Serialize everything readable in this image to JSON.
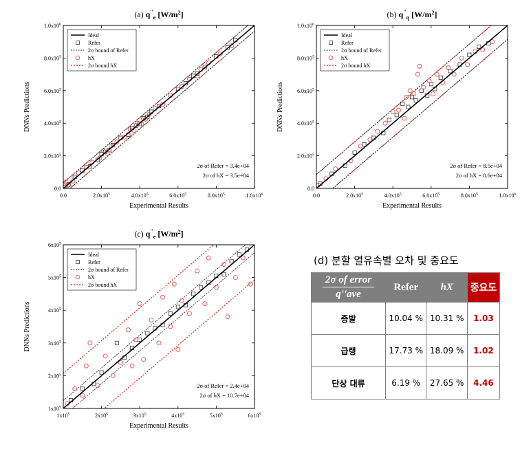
{
  "chart_data": [
    {
      "type": "scatter",
      "panel_label": "(a)",
      "title": "(a) q\"e [W/m2]",
      "title_parts": {
        "panel": "(a)",
        "symbol": "q",
        "sup": "''",
        "sub": "e",
        "unit": "[W/m",
        "unit_sup": "2",
        "unit_end": "]"
      },
      "xlabel": "Experimental Results",
      "ylabel": "DNNs Predictions",
      "xlim": [
        0,
        1000000
      ],
      "ylim": [
        0,
        1000000
      ],
      "x_ticks": [
        {
          "v": 0,
          "label": "0.0",
          "exp": ""
        },
        {
          "v": 200000,
          "label": "2.0x10",
          "exp": "5"
        },
        {
          "v": 400000,
          "label": "4.0x10",
          "exp": "5"
        },
        {
          "v": 600000,
          "label": "6.0x10",
          "exp": "5"
        },
        {
          "v": 800000,
          "label": "8.0x10",
          "exp": "5"
        },
        {
          "v": 1000000,
          "label": "1.0x10",
          "exp": "6"
        }
      ],
      "y_ticks": [
        {
          "v": 0,
          "label": "0.0",
          "exp": ""
        },
        {
          "v": 200000,
          "label": "2.0x10",
          "exp": "5"
        },
        {
          "v": 400000,
          "label": "4.0x10",
          "exp": "5"
        },
        {
          "v": 600000,
          "label": "6.0x10",
          "exp": "5"
        },
        {
          "v": 800000,
          "label": "8.0x10",
          "exp": "5"
        },
        {
          "v": 1000000,
          "label": "1.0x10",
          "exp": "6"
        }
      ],
      "legend": [
        "Ideal",
        "Refer",
        "2σ bound of Refer",
        "hX",
        "2σ bound hX"
      ],
      "legend_position": "top-left",
      "annotations": [
        "2σ of Refer = 3.4e+04",
        "2σ of hX = 3.5e+04"
      ],
      "bound_refer": 34000,
      "bound_hx": 35000,
      "series": [
        {
          "name": "Refer",
          "points": [
            [
              10000,
              15000
            ],
            [
              30000,
              25000
            ],
            [
              60000,
              70000
            ],
            [
              100000,
              110000
            ],
            [
              140000,
              135000
            ],
            [
              180000,
              175000
            ],
            [
              200000,
              210000
            ],
            [
              220000,
              225000
            ],
            [
              240000,
              235000
            ],
            [
              260000,
              265000
            ],
            [
              300000,
              310000
            ],
            [
              340000,
              330000
            ],
            [
              360000,
              370000
            ],
            [
              380000,
              385000
            ],
            [
              400000,
              395000
            ],
            [
              420000,
              430000
            ],
            [
              440000,
              440000
            ],
            [
              460000,
              470000
            ],
            [
              500000,
              505000
            ],
            [
              600000,
              610000
            ],
            [
              640000,
              645000
            ],
            [
              680000,
              690000
            ],
            [
              700000,
              705000
            ],
            [
              740000,
              745000
            ],
            [
              800000,
              810000
            ],
            [
              860000,
              865000
            ],
            [
              900000,
              910000
            ]
          ]
        },
        {
          "name": "hX",
          "points": [
            [
              5000,
              30000
            ],
            [
              15000,
              40000
            ],
            [
              25000,
              20000
            ],
            [
              50000,
              45000
            ],
            [
              80000,
              95000
            ],
            [
              120000,
              130000
            ],
            [
              150000,
              160000
            ],
            [
              190000,
              185000
            ],
            [
              210000,
              230000
            ],
            [
              230000,
              215000
            ],
            [
              250000,
              260000
            ],
            [
              280000,
              285000
            ],
            [
              320000,
              315000
            ],
            [
              350000,
              360000
            ],
            [
              370000,
              355000
            ],
            [
              390000,
              400000
            ],
            [
              400000,
              420000
            ],
            [
              410000,
              395000
            ],
            [
              430000,
              425000
            ],
            [
              450000,
              455000
            ],
            [
              480000,
              490000
            ],
            [
              520000,
              515000
            ],
            [
              560000,
              570000
            ],
            [
              620000,
              625000
            ],
            [
              660000,
              670000
            ],
            [
              700000,
              690000
            ],
            [
              720000,
              730000
            ],
            [
              760000,
              770000
            ],
            [
              820000,
              825000
            ],
            [
              880000,
              875000
            ]
          ]
        }
      ]
    },
    {
      "type": "scatter",
      "panel_label": "(b)",
      "title": "(b) q\"q [W/m2]",
      "title_parts": {
        "panel": "(b)",
        "symbol": "q",
        "sup": "''",
        "sub": "q",
        "unit": "[W/m",
        "unit_sup": "2",
        "unit_end": "]"
      },
      "xlabel": "Experimental Results",
      "ylabel": "DNNs Predictions",
      "xlim": [
        0,
        1000000
      ],
      "ylim": [
        0,
        1000000
      ],
      "x_ticks": [
        {
          "v": 0,
          "label": "0.0",
          "exp": ""
        },
        {
          "v": 200000,
          "label": "2.0x10",
          "exp": "5"
        },
        {
          "v": 400000,
          "label": "4.0x10",
          "exp": "5"
        },
        {
          "v": 600000,
          "label": "6.0x10",
          "exp": "5"
        },
        {
          "v": 800000,
          "label": "8.0x10",
          "exp": "5"
        },
        {
          "v": 1000000,
          "label": "1.0x10",
          "exp": "6"
        }
      ],
      "y_ticks": [
        {
          "v": 0,
          "label": "0.0",
          "exp": ""
        },
        {
          "v": 200000,
          "label": "2.0x10",
          "exp": "5"
        },
        {
          "v": 400000,
          "label": "4.0x10",
          "exp": "5"
        },
        {
          "v": 600000,
          "label": "6.0x10",
          "exp": "5"
        },
        {
          "v": 800000,
          "label": "8.0x10",
          "exp": "5"
        },
        {
          "v": 1000000,
          "label": "1.0x10",
          "exp": "6"
        }
      ],
      "legend": [
        "Ideal",
        "Refer",
        "2σ bound of Refer",
        "hX",
        "2σ bound hX"
      ],
      "legend_position": "top-left",
      "annotations": [
        "2σ of Refer = 8.5e+04",
        "2σ of hX = 8.6e+04"
      ],
      "bound_refer": 85000,
      "bound_hx": 86000,
      "series": [
        {
          "name": "Refer",
          "points": [
            [
              20000,
              30000
            ],
            [
              80000,
              90000
            ],
            [
              150000,
              140000
            ],
            [
              200000,
              220000
            ],
            [
              250000,
              270000
            ],
            [
              300000,
              310000
            ],
            [
              350000,
              340000
            ],
            [
              380000,
              420000
            ],
            [
              420000,
              450000
            ],
            [
              450000,
              520000
            ],
            [
              480000,
              500000
            ],
            [
              500000,
              560000
            ],
            [
              520000,
              540000
            ],
            [
              550000,
              600000
            ],
            [
              580000,
              570000
            ],
            [
              600000,
              640000
            ],
            [
              620000,
              610000
            ],
            [
              650000,
              680000
            ],
            [
              700000,
              720000
            ],
            [
              750000,
              760000
            ],
            [
              800000,
              820000
            ],
            [
              850000,
              870000
            ],
            [
              900000,
              890000
            ]
          ]
        },
        {
          "name": "hX",
          "points": [
            [
              10000,
              20000
            ],
            [
              50000,
              60000
            ],
            [
              100000,
              120000
            ],
            [
              180000,
              170000
            ],
            [
              230000,
              260000
            ],
            [
              280000,
              300000
            ],
            [
              320000,
              350000
            ],
            [
              360000,
              400000
            ],
            [
              400000,
              470000
            ],
            [
              430000,
              480000
            ],
            [
              460000,
              430000
            ],
            [
              470000,
              560000
            ],
            [
              490000,
              600000
            ],
            [
              510000,
              580000
            ],
            [
              530000,
              700000
            ],
            [
              540000,
              750000
            ],
            [
              560000,
              620000
            ],
            [
              590000,
              660000
            ],
            [
              610000,
              580000
            ],
            [
              630000,
              700000
            ],
            [
              660000,
              650000
            ],
            [
              690000,
              740000
            ],
            [
              720000,
              700000
            ],
            [
              760000,
              800000
            ],
            [
              790000,
              760000
            ],
            [
              830000,
              840000
            ],
            [
              870000,
              850000
            ],
            [
              920000,
              900000
            ]
          ]
        }
      ]
    },
    {
      "type": "scatter",
      "panel_label": "(c)",
      "title": "(c) q\"e [W/m2]",
      "title_parts": {
        "panel": "(c)",
        "symbol": "q",
        "sup": "''",
        "sub": "e",
        "unit": "[W/m",
        "unit_sup": "2",
        "unit_end": "]"
      },
      "xlabel": "Experimental Results",
      "ylabel": "DNNs Predictions",
      "xlim": [
        100000,
        600000
      ],
      "ylim": [
        100000,
        600000
      ],
      "x_ticks": [
        {
          "v": 100000,
          "label": "1x10",
          "exp": "5"
        },
        {
          "v": 200000,
          "label": "2x10",
          "exp": "5"
        },
        {
          "v": 300000,
          "label": "3x10",
          "exp": "5"
        },
        {
          "v": 400000,
          "label": "4x10",
          "exp": "5"
        },
        {
          "v": 500000,
          "label": "5x10",
          "exp": "5"
        },
        {
          "v": 600000,
          "label": "6x10",
          "exp": "5"
        }
      ],
      "y_ticks": [
        {
          "v": 100000,
          "label": "1x10",
          "exp": "5"
        },
        {
          "v": 200000,
          "label": "2x10",
          "exp": "5"
        },
        {
          "v": 300000,
          "label": "3x10",
          "exp": "5"
        },
        {
          "v": 400000,
          "label": "4x10",
          "exp": "5"
        },
        {
          "v": 500000,
          "label": "5x10",
          "exp": "5"
        },
        {
          "v": 600000,
          "label": "6x10",
          "exp": "5"
        }
      ],
      "legend": [
        "Ideal",
        "Refer",
        "2σ bound of Refer",
        "hX",
        "2σ bound hX"
      ],
      "legend_position": "top-left",
      "annotations": [
        "2σ of Refer = 2.4e+04",
        "2σ of hX = 10.7e+04"
      ],
      "bound_refer": 24000,
      "bound_hx": 107000,
      "series": [
        {
          "name": "Refer",
          "points": [
            [
              120000,
              125000
            ],
            [
              150000,
              160000
            ],
            [
              180000,
              175000
            ],
            [
              200000,
              210000
            ],
            [
              240000,
              300000
            ],
            [
              260000,
              255000
            ],
            [
              280000,
              285000
            ],
            [
              300000,
              310000
            ],
            [
              320000,
              330000
            ],
            [
              340000,
              345000
            ],
            [
              360000,
              355000
            ],
            [
              380000,
              390000
            ],
            [
              400000,
              410000
            ],
            [
              420000,
              415000
            ],
            [
              440000,
              450000
            ],
            [
              460000,
              470000
            ],
            [
              480000,
              485000
            ],
            [
              500000,
              505000
            ],
            [
              520000,
              510000
            ],
            [
              540000,
              550000
            ],
            [
              560000,
              570000
            ],
            [
              580000,
              585000
            ]
          ]
        },
        {
          "name": "hX",
          "points": [
            [
              110000,
              115000
            ],
            [
              130000,
              160000
            ],
            [
              150000,
              140000
            ],
            [
              160000,
              230000
            ],
            [
              170000,
              300000
            ],
            [
              190000,
              170000
            ],
            [
              210000,
              260000
            ],
            [
              230000,
              200000
            ],
            [
              250000,
              240000
            ],
            [
              270000,
              340000
            ],
            [
              280000,
              230000
            ],
            [
              290000,
              310000
            ],
            [
              300000,
              420000
            ],
            [
              310000,
              250000
            ],
            [
              330000,
              370000
            ],
            [
              350000,
              300000
            ],
            [
              360000,
              440000
            ],
            [
              380000,
              350000
            ],
            [
              390000,
              480000
            ],
            [
              400000,
              280000
            ],
            [
              410000,
              430000
            ],
            [
              430000,
              390000
            ],
            [
              450000,
              520000
            ],
            [
              470000,
              420000
            ],
            [
              480000,
              560000
            ],
            [
              500000,
              470000
            ],
            [
              520000,
              540000
            ],
            [
              530000,
              380000
            ],
            [
              550000,
              500000
            ],
            [
              570000,
              560000
            ],
            [
              590000,
              480000
            ]
          ]
        }
      ]
    }
  ],
  "table": {
    "title": "(d) 분할 열유속별 오차 및 중요도",
    "header": {
      "metric_numerator": "2σ of error",
      "metric_denominator": "q''ave",
      "refer": "Refer",
      "hx": "hX",
      "importance": "중요도"
    },
    "rows": [
      {
        "label": "증발",
        "refer": "10.04 %",
        "hx": "10.31 %",
        "importance": "1.03"
      },
      {
        "label": "급랭",
        "refer": "17.73 %",
        "hx": "18.09 %",
        "importance": "1.02"
      },
      {
        "label": "단상 대류",
        "refer": "6.19 %",
        "hx": "27.65 %",
        "importance": "4.46"
      }
    ]
  },
  "colors": {
    "ideal": "#000000",
    "refer": "#333333",
    "refer_bound": "#333333",
    "hx": "#e05050",
    "hx_bound": "#d02020",
    "importance": "#c00000",
    "header_bg": "#7f7f7f"
  }
}
